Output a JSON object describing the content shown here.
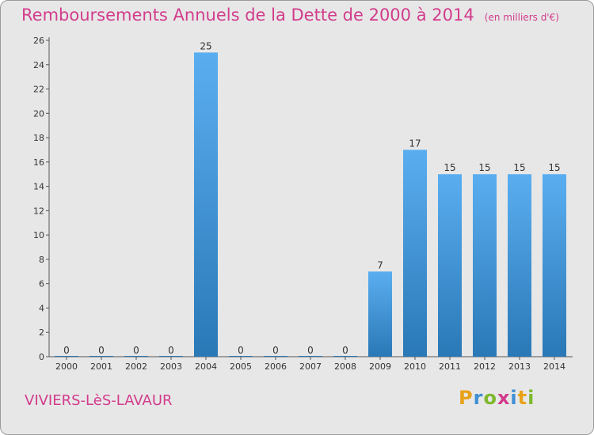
{
  "header": {
    "title": "Remboursements Annuels de la Dette de 2000 à 2014",
    "subtitle": "(en milliers d'€)"
  },
  "footer": {
    "commune": "VIVIERS-LèS-LAVAUR",
    "logo_letters": [
      "P",
      "r",
      "o",
      "x",
      "i",
      "t",
      "i"
    ],
    "logo_colors": [
      "#e8a21a",
      "#3f8fd4",
      "#7fb82e",
      "#d23c8c",
      "#3f8fd4",
      "#e8a21a",
      "#7fb82e"
    ]
  },
  "colors": {
    "title": "#d23c8c",
    "bar_top": "#5aaef0",
    "bar_bottom": "#2a78b6",
    "background": "#e7e7e7"
  },
  "chart_data": {
    "type": "bar",
    "title": "Remboursements Annuels de la Dette de 2000 à 2014",
    "categories": [
      "2000",
      "2001",
      "2002",
      "2003",
      "2004",
      "2005",
      "2006",
      "2007",
      "2008",
      "2009",
      "2010",
      "2011",
      "2012",
      "2013",
      "2014"
    ],
    "values": [
      0,
      0,
      0,
      0,
      25,
      0,
      0,
      0,
      0,
      7,
      17,
      15,
      15,
      15,
      15
    ],
    "ylim": [
      0,
      26
    ],
    "yticks": [
      0,
      2,
      4,
      6,
      8,
      10,
      12,
      14,
      16,
      18,
      20,
      22,
      24,
      26
    ],
    "grid": false,
    "legend": "none"
  }
}
